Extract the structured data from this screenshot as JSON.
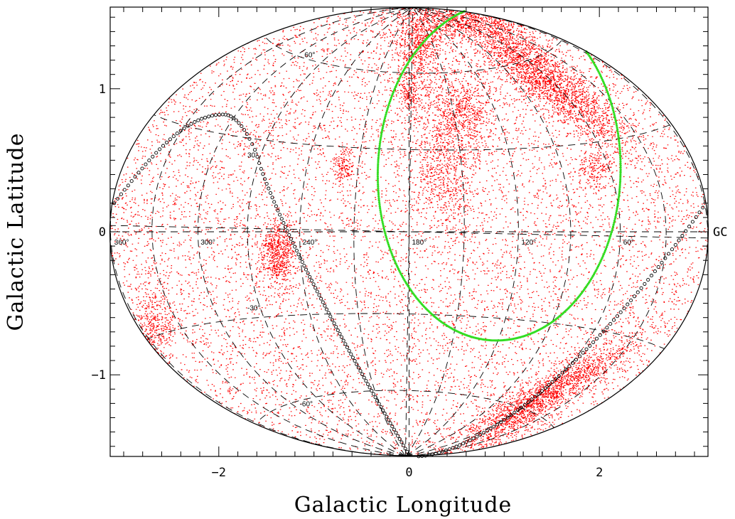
{
  "chart_data": {
    "type": "scatter",
    "projection": "aitoff-hammer all-sky",
    "xlabel": "Galactic Longitude",
    "ylabel": "Galactic Latitude",
    "xlim": [
      -3.1416,
      3.1416
    ],
    "ylim": [
      -1.5708,
      1.5708
    ],
    "x_ticks": [
      {
        "value": -2,
        "label": "−2"
      },
      {
        "value": 0,
        "label": "0"
      },
      {
        "value": 2,
        "label": "2"
      }
    ],
    "y_ticks": [
      {
        "value": -1,
        "label": "−1"
      },
      {
        "value": 0,
        "label": "0"
      },
      {
        "value": 1,
        "label": "1"
      }
    ],
    "longitude_labels": [
      {
        "label": "360°",
        "lon_deg": 360
      },
      {
        "label": "300°",
        "lon_deg": 300
      },
      {
        "label": "240°",
        "lon_deg": 240
      },
      {
        "label": "180°",
        "lon_deg": 180
      },
      {
        "label": "120°",
        "lon_deg": 120
      },
      {
        "label": "60°",
        "lon_deg": 60
      }
    ],
    "latitude_labels": [
      {
        "label": "60°",
        "lat_deg": 60
      },
      {
        "label": "30°",
        "lat_deg": 30
      },
      {
        "label": "-30°",
        "lat_deg": -30
      },
      {
        "label": "-60°",
        "lat_deg": -60
      }
    ],
    "gc_label": "GC",
    "density_regions": [
      {
        "name": "north-arc",
        "x": 1.35,
        "y": 1.12,
        "sx": 0.55,
        "sy": 0.1,
        "angle_deg": -28,
        "n": 2600
      },
      {
        "name": "north-pole-cap",
        "x": 0.4,
        "y": 1.48,
        "sx": 0.35,
        "sy": 0.07,
        "angle_deg": 0,
        "n": 900
      },
      {
        "name": "cloud-upper",
        "x": 0.1,
        "y": 1.3,
        "sx": 0.12,
        "sy": 0.12,
        "angle_deg": 0,
        "n": 500
      },
      {
        "name": "cloud-center",
        "x": 0.55,
        "y": 0.85,
        "sx": 0.2,
        "sy": 0.16,
        "angle_deg": 0,
        "n": 700
      },
      {
        "name": "cloud-stream",
        "x": 0.35,
        "y": 0.42,
        "sx": 0.15,
        "sy": 0.22,
        "angle_deg": 20,
        "n": 550
      },
      {
        "name": "cloud-left-upper",
        "x": 0.0,
        "y": 0.97,
        "sx": 0.06,
        "sy": 0.08,
        "angle_deg": 0,
        "n": 200
      },
      {
        "name": "cloud-mid-left",
        "x": -0.7,
        "y": 0.45,
        "sx": 0.06,
        "sy": 0.06,
        "angle_deg": 0,
        "n": 150
      },
      {
        "name": "cloud-right",
        "x": 1.95,
        "y": 0.45,
        "sx": 0.08,
        "sy": 0.07,
        "angle_deg": 0,
        "n": 150
      },
      {
        "name": "lmc-clump",
        "x": -1.38,
        "y": -0.15,
        "sx": 0.09,
        "sy": 0.11,
        "angle_deg": 0,
        "n": 600
      },
      {
        "name": "south-arc",
        "x": 1.35,
        "y": -1.17,
        "sx": 0.52,
        "sy": 0.07,
        "angle_deg": 22,
        "n": 1900
      },
      {
        "name": "left-edge-clump",
        "x": -2.7,
        "y": -0.68,
        "sx": 0.1,
        "sy": 0.18,
        "angle_deg": 0,
        "n": 450
      }
    ],
    "background_points": 9000,
    "overlays": [
      {
        "name": "black-open-circle-curve",
        "marker": "open-circle",
        "color": "#000000"
      },
      {
        "name": "green-ellipse",
        "marker": "dot",
        "color": "#33dd22"
      }
    ],
    "colors": {
      "points": "#ff0000",
      "grid": "#000000",
      "green_curve": "#33dd22",
      "black_curve": "#000000"
    }
  }
}
